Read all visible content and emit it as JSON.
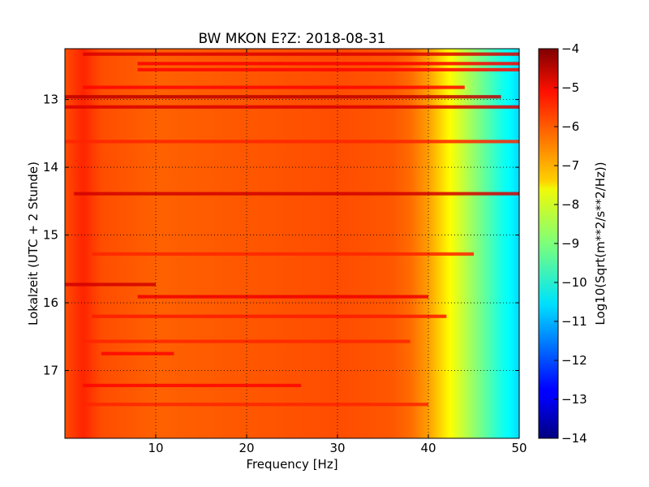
{
  "chart_data": {
    "type": "heatmap",
    "title": "BW MKON E?Z: 2018-08-31",
    "xlabel": "Frequency [Hz]",
    "ylabel": "Lokalzeit (UTC + 2 Stunde)",
    "xlim": [
      0,
      50
    ],
    "ylim": [
      12.25,
      18.0
    ],
    "y_inverted": true,
    "x_ticks": [
      10,
      20,
      30,
      40,
      50
    ],
    "x_tick_labels": [
      "10",
      "20",
      "30",
      "40",
      "50"
    ],
    "y_ticks": [
      13,
      14,
      15,
      16,
      17
    ],
    "y_tick_labels": [
      "13",
      "14",
      "15",
      "16",
      "17"
    ],
    "grid": true,
    "colormap": "jet",
    "colorbar": {
      "label": "Log10(Sqrt(m**2/s**2/Hz))",
      "range": [
        -14,
        -4
      ],
      "ticks": [
        -4,
        -5,
        -6,
        -7,
        -8,
        -9,
        -10,
        -11,
        -12,
        -13,
        -14
      ],
      "tick_labels": [
        "−4",
        "−5",
        "−6",
        "−7",
        "−8",
        "−9",
        "−10",
        "−11",
        "−12",
        "−13",
        "−14"
      ]
    },
    "spectrum_profile": {
      "frequency": [
        0,
        2,
        4,
        10,
        20,
        30,
        36,
        38,
        40,
        41,
        42,
        43,
        44,
        45,
        46,
        47,
        48,
        49,
        50
      ],
      "level": [
        -6.0,
        -5.6,
        -6.0,
        -6.2,
        -6.1,
        -6.0,
        -6.1,
        -6.3,
        -6.8,
        -7.2,
        -7.6,
        -8.0,
        -8.4,
        -8.8,
        -9.2,
        -9.6,
        -10.0,
        -10.3,
        -10.6
      ]
    },
    "strong_bands": [
      {
        "time": 12.33,
        "from_hz": 2,
        "to_hz": 50,
        "level": -4.9
      },
      {
        "time": 12.47,
        "from_hz": 8,
        "to_hz": 50,
        "level": -5.2
      },
      {
        "time": 12.56,
        "from_hz": 8,
        "to_hz": 50,
        "level": -5.3
      },
      {
        "time": 12.82,
        "from_hz": 2,
        "to_hz": 44,
        "level": -5.3
      },
      {
        "time": 12.96,
        "from_hz": 0,
        "to_hz": 48,
        "level": -4.6
      },
      {
        "time": 13.11,
        "from_hz": 0,
        "to_hz": 50,
        "level": -4.9
      },
      {
        "time": 13.62,
        "from_hz": 0,
        "to_hz": 50,
        "level": -5.6
      },
      {
        "time": 14.39,
        "from_hz": 1,
        "to_hz": 50,
        "level": -4.8
      },
      {
        "time": 15.28,
        "from_hz": 3,
        "to_hz": 45,
        "level": -5.6
      },
      {
        "time": 15.73,
        "from_hz": 0,
        "to_hz": 10,
        "level": -4.8
      },
      {
        "time": 15.91,
        "from_hz": 8,
        "to_hz": 40,
        "level": -5.1
      },
      {
        "time": 16.2,
        "from_hz": 3,
        "to_hz": 42,
        "level": -5.5
      },
      {
        "time": 16.57,
        "from_hz": 2,
        "to_hz": 38,
        "level": -5.6
      },
      {
        "time": 16.75,
        "from_hz": 4,
        "to_hz": 12,
        "level": -5.3
      },
      {
        "time": 17.22,
        "from_hz": 2,
        "to_hz": 26,
        "level": -5.3
      },
      {
        "time": 17.5,
        "from_hz": 2,
        "to_hz": 40,
        "level": -5.6
      }
    ]
  }
}
